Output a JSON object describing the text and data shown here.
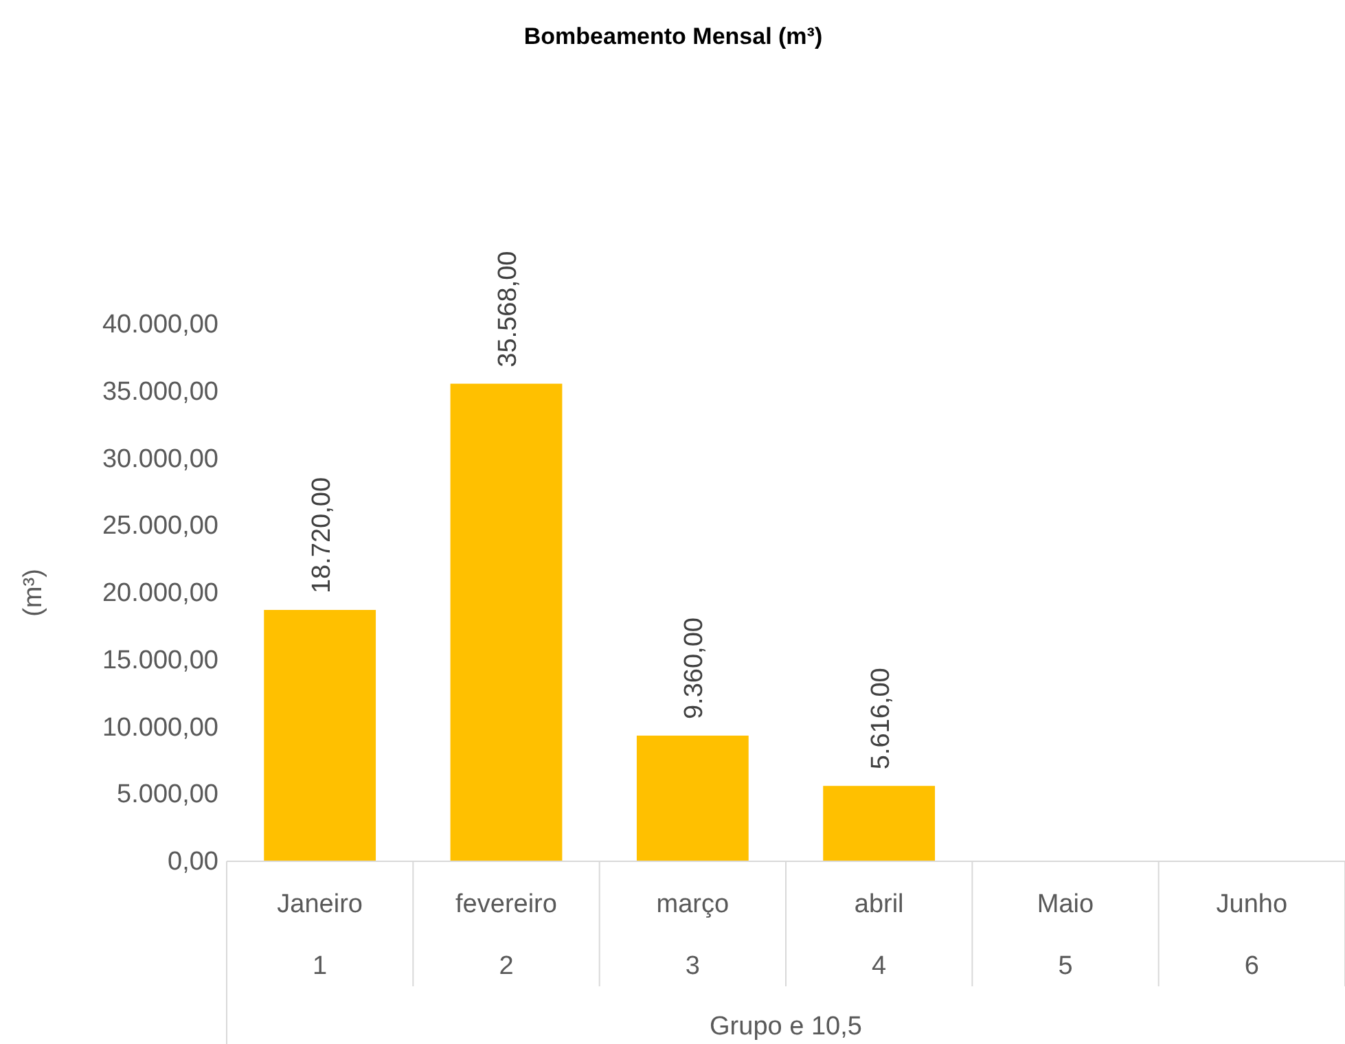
{
  "chart_data": {
    "type": "bar",
    "title": "Bombeamento Mensal (m³)",
    "ylabel": "(m³)",
    "xlabel": "Grupo e 10,5",
    "categories": [
      "Janeiro",
      "fevereiro",
      "março",
      "abril",
      "Maio",
      "Junho"
    ],
    "values": [
      18720,
      35568,
      9360,
      5616,
      null,
      null
    ],
    "value_labels": [
      "18.720,00",
      "35.568,00",
      "9.360,00",
      "5.616,00",
      null,
      null
    ],
    "color": "#ffc000",
    "ylim": [
      0,
      40000
    ],
    "yticks": [
      {
        "value": 0,
        "label": "0,00"
      },
      {
        "value": 5000,
        "label": "5.000,00"
      },
      {
        "value": 10000,
        "label": "10.000,00"
      },
      {
        "value": 15000,
        "label": "15.000,00"
      },
      {
        "value": 20000,
        "label": "20.000,00"
      },
      {
        "value": 25000,
        "label": "25.000,00"
      },
      {
        "value": 30000,
        "label": "30.000,00"
      },
      {
        "value": 35000,
        "label": "35.000,00"
      },
      {
        "value": 40000,
        "label": "40.000,00"
      }
    ],
    "annotations": [
      "1",
      "2",
      "3",
      "4",
      "5",
      "6"
    ],
    "grid": false
  }
}
